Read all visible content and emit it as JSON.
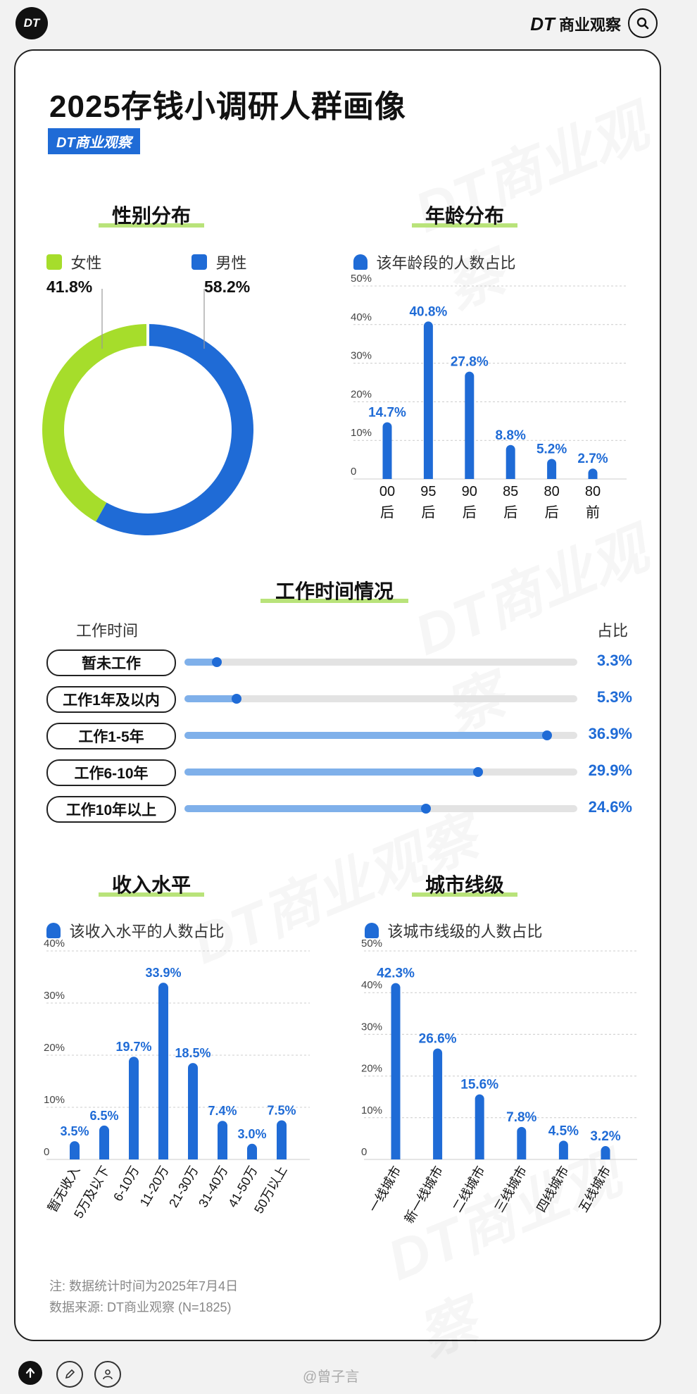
{
  "header": {
    "logo": "DT",
    "brand_dt": "DT",
    "brand_name": "商业观察",
    "search_icon": "search-icon"
  },
  "title": "2025存钱小调研人群画像",
  "tag": "DT商业观察",
  "watermark": "DT商业观察",
  "gender": {
    "title": "性别分布",
    "female_label": "女性",
    "male_label": "男性",
    "female_pct": "41.8%",
    "male_pct": "58.2%",
    "female_color": "#a6dd2b",
    "male_color": "#1f6bd6"
  },
  "age": {
    "title": "年龄分布",
    "legend": "该年龄段的人数占比"
  },
  "work": {
    "title": "工作时间情况",
    "col_left": "工作时间",
    "col_right": "占比",
    "rows": [
      {
        "label": "暂未工作",
        "value": 3.3,
        "text": "3.3%"
      },
      {
        "label": "工作1年及以内",
        "value": 5.3,
        "text": "5.3%"
      },
      {
        "label": "工作1-5年",
        "value": 36.9,
        "text": "36.9%"
      },
      {
        "label": "工作6-10年",
        "value": 29.9,
        "text": "29.9%"
      },
      {
        "label": "工作10年以上",
        "value": 24.6,
        "text": "24.6%"
      }
    ]
  },
  "income": {
    "title": "收入水平",
    "legend": "该收入水平的人数占比"
  },
  "city": {
    "title": "城市线级",
    "legend": "该城市线级的人数占比"
  },
  "notes": {
    "line1": "注: 数据统计时间为2025年7月4日",
    "line2": "数据来源: DT商业观察 (N=1825)"
  },
  "footer": {
    "username": "@曾子言"
  },
  "chart_data": [
    {
      "type": "pie",
      "title": "性别分布",
      "categories": [
        "女性",
        "男性"
      ],
      "values": [
        41.8,
        58.2
      ],
      "colors": [
        "#a6dd2b",
        "#1f6bd6"
      ]
    },
    {
      "type": "bar",
      "title": "年龄分布",
      "series_name": "该年龄段的人数占比",
      "categories": [
        "00后",
        "95后",
        "90后",
        "85后",
        "80后",
        "80前"
      ],
      "tick_lines": [
        [
          "00",
          "后"
        ],
        [
          "95",
          "后"
        ],
        [
          "90",
          "后"
        ],
        [
          "85",
          "后"
        ],
        [
          "80",
          "后"
        ],
        [
          "80",
          "前"
        ]
      ],
      "values": [
        14.7,
        40.8,
        27.8,
        8.8,
        5.2,
        2.7
      ],
      "labels": [
        "14.7%",
        "40.8%",
        "27.8%",
        "8.8%",
        "5.2%",
        "2.7%"
      ],
      "yticks": [
        "0",
        "10%",
        "20%",
        "30%",
        "40%",
        "50%"
      ],
      "ylim": [
        0,
        50
      ]
    },
    {
      "type": "bar",
      "title": "工作时间情况",
      "categories": [
        "暂未工作",
        "工作1年及以内",
        "工作1-5年",
        "工作6-10年",
        "工作10年以上"
      ],
      "values": [
        3.3,
        5.3,
        36.9,
        29.9,
        24.6
      ]
    },
    {
      "type": "bar",
      "title": "收入水平",
      "series_name": "该收入水平的人数占比",
      "categories": [
        "暂无收入",
        "5万及以下",
        "6-10万",
        "11-20万",
        "21-30万",
        "31-40万",
        "41-50万",
        "50万以上"
      ],
      "values": [
        3.5,
        6.5,
        19.7,
        33.9,
        18.5,
        7.4,
        3.0,
        7.5
      ],
      "labels": [
        "3.5%",
        "6.5%",
        "19.7%",
        "33.9%",
        "18.5%",
        "7.4%",
        "3.0%",
        "7.5%"
      ],
      "yticks": [
        "0",
        "10%",
        "20%",
        "30%",
        "40%"
      ],
      "ylim": [
        0,
        40
      ]
    },
    {
      "type": "bar",
      "title": "城市线级",
      "series_name": "该城市线级的人数占比",
      "categories": [
        "一线城市",
        "新一线城市",
        "二线城市",
        "三线城市",
        "四线城市",
        "五线城市"
      ],
      "values": [
        42.3,
        26.6,
        15.6,
        7.8,
        4.5,
        3.2
      ],
      "labels": [
        "42.3%",
        "26.6%",
        "15.6%",
        "7.8%",
        "4.5%",
        "3.2%"
      ],
      "yticks": [
        "0",
        "10%",
        "20%",
        "30%",
        "40%",
        "50%"
      ],
      "ylim": [
        0,
        50
      ]
    }
  ]
}
